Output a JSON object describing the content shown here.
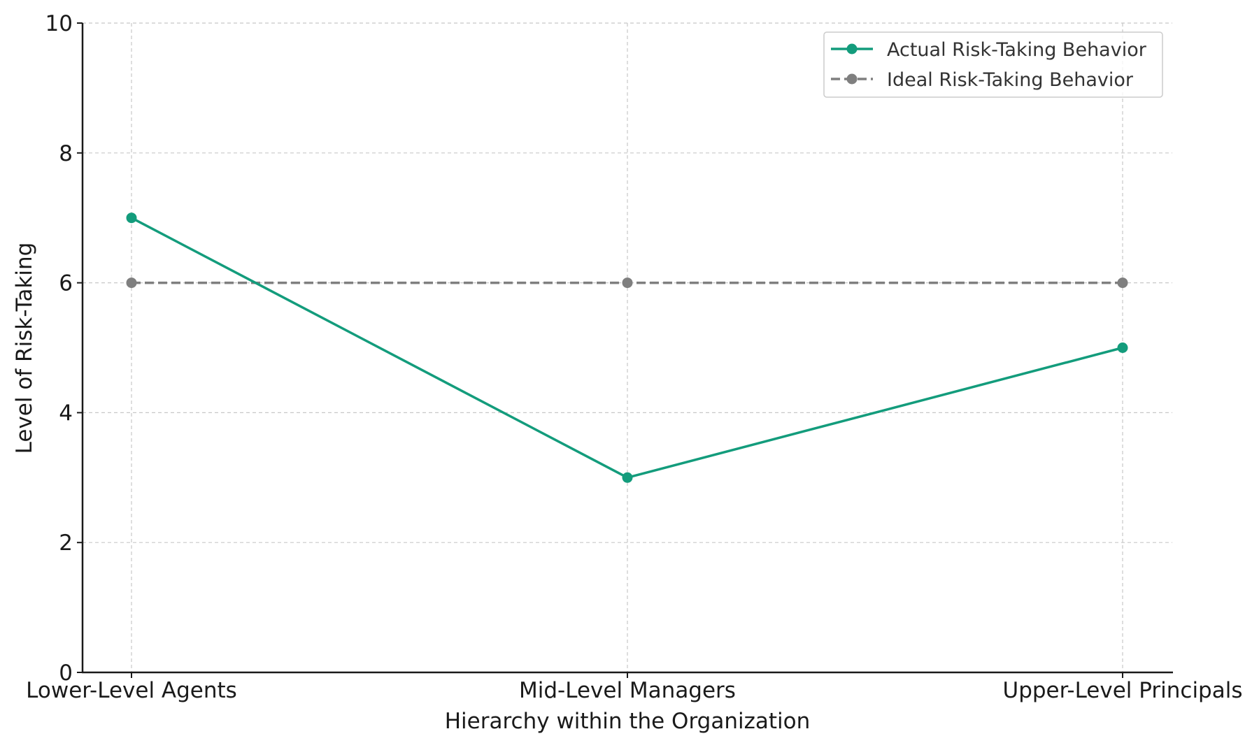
{
  "chart_data": {
    "type": "line",
    "title": "",
    "xlabel": "Hierarchy within the Organization",
    "ylabel": "Level of Risk-Taking",
    "categories": [
      "Lower-Level Agents",
      "Mid-Level Managers",
      "Upper-Level Principals"
    ],
    "ylim": [
      0,
      10
    ],
    "yticks": [
      0,
      2,
      4,
      6,
      8,
      10
    ],
    "grid": true,
    "legend_position": "top-right",
    "series": [
      {
        "name": "Actual Risk-Taking Behavior",
        "values": [
          7,
          3,
          5
        ],
        "color": "#139c7c",
        "line_style": "solid",
        "marker": "circle"
      },
      {
        "name": "Ideal Risk-Taking Behavior",
        "values": [
          6,
          6,
          6
        ],
        "color": "#7f7f7f",
        "line_style": "dashed",
        "marker": "circle"
      }
    ]
  }
}
